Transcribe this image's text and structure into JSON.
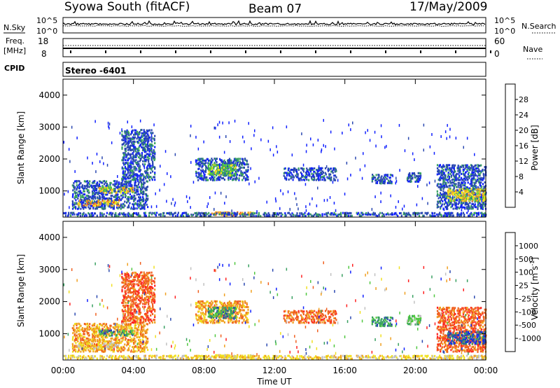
{
  "header": {
    "station": "Syowa South (fitACF)",
    "beam": "Beam 07",
    "date": "17/May/2009"
  },
  "top_panels": {
    "nsky_label": "N.Sky",
    "nsky_ticks": [
      "10^5",
      "10^0"
    ],
    "freq_label_1": "Freq.",
    "freq_label_2": "[MHz]",
    "freq_ticks": [
      "18",
      "8"
    ],
    "cpid_label": "CPID",
    "cpid_value": "Stereo  -6401",
    "nsearch_label": "N.Search",
    "nsearch_ticks": [
      "10^5",
      "10^0"
    ],
    "nave_label": "Nave",
    "nave_ticks": [
      "60",
      "0"
    ]
  },
  "chart_data": [
    {
      "type": "heatmap",
      "name": "power",
      "xlabel": "Time UT",
      "ylabel": "Slant Range [km]",
      "x_ticks": [
        "00:00",
        "04:00",
        "08:00",
        "12:00",
        "16:00",
        "20:00",
        "00:00"
      ],
      "x_range_hours": [
        0,
        24
      ],
      "y_range_km": [
        180,
        4500
      ],
      "y_ticks": [
        "1000",
        "2000",
        "3000",
        "4000"
      ],
      "colorbar_label": "Power [dB]",
      "colorbar_ticks": [
        "4",
        "8",
        "12",
        "16",
        "20",
        "24",
        "28"
      ],
      "colorbar_colors": [
        "#1020ff",
        "#2a48b0",
        "#38a060",
        "#50c840",
        "#f0e020",
        "#f0a020",
        "#f06020",
        "#ff2020"
      ],
      "echo_regions": [
        {
          "t0": 0.5,
          "t1": 4.8,
          "r0": 400,
          "r1": 1300,
          "level": 1
        },
        {
          "t0": 2.0,
          "t1": 4.0,
          "r0": 900,
          "r1": 1100,
          "level": 4
        },
        {
          "t0": 0.8,
          "t1": 3.2,
          "r0": 500,
          "r1": 700,
          "level": 5
        },
        {
          "t0": 3.3,
          "t1": 5.2,
          "r0": 1300,
          "r1": 2900,
          "level": 1
        },
        {
          "t0": 7.5,
          "t1": 10.5,
          "r0": 1300,
          "r1": 2000,
          "level": 1
        },
        {
          "t0": 8.2,
          "t1": 9.8,
          "r0": 1450,
          "r1": 1800,
          "level": 3
        },
        {
          "t0": 8.4,
          "t1": 10.8,
          "r0": 200,
          "r1": 320,
          "level": 5
        },
        {
          "t0": 12.5,
          "t1": 15.5,
          "r0": 1300,
          "r1": 1700,
          "level": 1
        },
        {
          "t0": 17.5,
          "t1": 18.7,
          "r0": 1200,
          "r1": 1500,
          "level": 1
        },
        {
          "t0": 19.5,
          "t1": 20.3,
          "r0": 1250,
          "r1": 1550,
          "level": 1
        },
        {
          "t0": 21.2,
          "t1": 24.0,
          "r0": 400,
          "r1": 1800,
          "level": 1
        },
        {
          "t0": 21.8,
          "t1": 24.0,
          "r0": 650,
          "r1": 1050,
          "level": 4
        },
        {
          "t0": 0.0,
          "t1": 24.0,
          "r0": 180,
          "r1": 300,
          "level": 1
        }
      ]
    },
    {
      "type": "heatmap",
      "name": "velocity",
      "xlabel": "Time UT",
      "ylabel": "Slant Range [km]",
      "x_ticks": [
        "00:00",
        "04:00",
        "08:00",
        "12:00",
        "16:00",
        "20:00",
        "00:00"
      ],
      "x_range_hours": [
        0,
        24
      ],
      "y_range_km": [
        180,
        4500
      ],
      "y_ticks": [
        "1000",
        "2000",
        "3000",
        "4000"
      ],
      "colorbar_label": "Velocity  [m s",
      "colorbar_label_sup": "-1",
      "colorbar_ticks": [
        "1000",
        "500",
        "100",
        "25",
        "-25",
        "-100",
        "-500",
        "-1000"
      ],
      "colorbar_colors": [
        "#1020ff",
        "#2a48b0",
        "#38a060",
        "#50c840",
        "#c0c0c0",
        "#f0e020",
        "#f0a020",
        "#f06020",
        "#ff2020"
      ],
      "echo_regions": [
        {
          "t0": 0.5,
          "t1": 4.8,
          "r0": 400,
          "r1": 1300,
          "level": 6
        },
        {
          "t0": 2.0,
          "t1": 4.0,
          "r0": 900,
          "r1": 1100,
          "level": 2
        },
        {
          "t0": 0.8,
          "t1": 3.2,
          "r0": 500,
          "r1": 700,
          "level": 5
        },
        {
          "t0": 3.3,
          "t1": 5.2,
          "r0": 1300,
          "r1": 2900,
          "level": 7
        },
        {
          "t0": 7.5,
          "t1": 10.5,
          "r0": 1300,
          "r1": 2000,
          "level": 6
        },
        {
          "t0": 8.2,
          "t1": 9.8,
          "r0": 1450,
          "r1": 1800,
          "level": 2
        },
        {
          "t0": 8.4,
          "t1": 10.8,
          "r0": 200,
          "r1": 320,
          "level": 5
        },
        {
          "t0": 12.5,
          "t1": 15.5,
          "r0": 1300,
          "r1": 1700,
          "level": 7
        },
        {
          "t0": 17.5,
          "t1": 18.7,
          "r0": 1200,
          "r1": 1500,
          "level": 2
        },
        {
          "t0": 19.5,
          "t1": 20.3,
          "r0": 1250,
          "r1": 1550,
          "level": 3
        },
        {
          "t0": 21.2,
          "t1": 24.0,
          "r0": 400,
          "r1": 1800,
          "level": 7
        },
        {
          "t0": 21.8,
          "t1": 24.0,
          "r0": 650,
          "r1": 1050,
          "level": 1
        },
        {
          "t0": 0.0,
          "t1": 24.0,
          "r0": 180,
          "r1": 300,
          "level": 5
        }
      ]
    }
  ]
}
